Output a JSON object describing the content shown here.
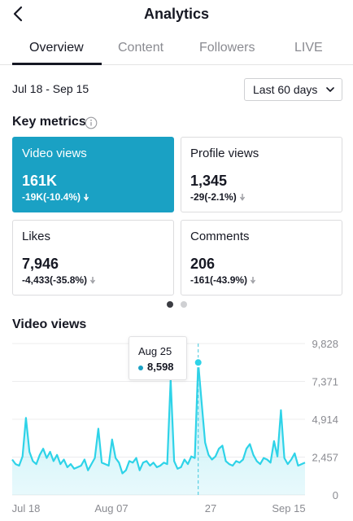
{
  "header": {
    "title": "Analytics",
    "back_icon": "chevron-left-icon"
  },
  "tabs": [
    {
      "label": "Overview",
      "active": true
    },
    {
      "label": "Content",
      "active": false
    },
    {
      "label": "Followers",
      "active": false
    },
    {
      "label": "LIVE",
      "active": false
    }
  ],
  "filter": {
    "date_range": "Jul 18 - Sep 15",
    "period": "Last 60 days",
    "period_icon": "chevron-down-icon"
  },
  "key_metrics": {
    "title": "Key metrics",
    "info_icon": "info-icon",
    "cards": [
      {
        "label": "Video views",
        "value": "161K",
        "change": "-19K(-10.4%)",
        "trend": "down",
        "active": true
      },
      {
        "label": "Profile views",
        "value": "1,345",
        "change": "-29(-2.1%)",
        "trend": "down",
        "active": false
      },
      {
        "label": "Likes",
        "value": "7,946",
        "change": "-4,433(-35.8%)",
        "trend": "down",
        "active": false
      },
      {
        "label": "Comments",
        "value": "206",
        "change": "-161(-43.9%)",
        "trend": "down",
        "active": false
      }
    ],
    "pager": {
      "pages": 2,
      "current": 1
    }
  },
  "colors": {
    "accent": "#1aa1c4",
    "text": "#161823",
    "muted": "#8a8b91"
  },
  "chart_data": {
    "type": "area",
    "title": "Video views",
    "y_ticks": [
      "9,828",
      "7,371",
      "4,914",
      "2,457",
      "0"
    ],
    "ylim": [
      0,
      9828
    ],
    "x_ticks": [
      "Jul 18",
      "Aug 07",
      "27",
      "Sep 15"
    ],
    "grid": true,
    "series": [
      {
        "values": [
          2300,
          2000,
          1900,
          2500,
          5000,
          2800,
          2200,
          2000,
          2600,
          3000,
          2400,
          2800,
          2200,
          2600,
          2000,
          2300,
          1800,
          2000,
          1700,
          1800,
          1900,
          2300,
          1600,
          2000,
          2400,
          4300,
          2100,
          2000,
          1900,
          3600,
          2400,
          2100,
          1400,
          1600,
          2200,
          2100,
          2400,
          1600,
          2100,
          2200,
          1900,
          2100,
          1800,
          1900,
          2100,
          2000,
          7500,
          2200,
          1700,
          1800,
          2300,
          2000,
          2500,
          2400,
          8598,
          6000,
          3400,
          2600,
          2300,
          2500,
          3000,
          3200,
          2200,
          2000,
          1900,
          2200,
          2100,
          2300,
          3000,
          3300,
          2600,
          2200,
          2000,
          2400,
          2300,
          2100,
          3500,
          2500,
          5500,
          2400,
          2000,
          2300,
          2700,
          1900,
          2000,
          2100
        ]
      }
    ],
    "highlight": {
      "date": "Aug 25",
      "value": "8,598",
      "index": 54
    }
  }
}
